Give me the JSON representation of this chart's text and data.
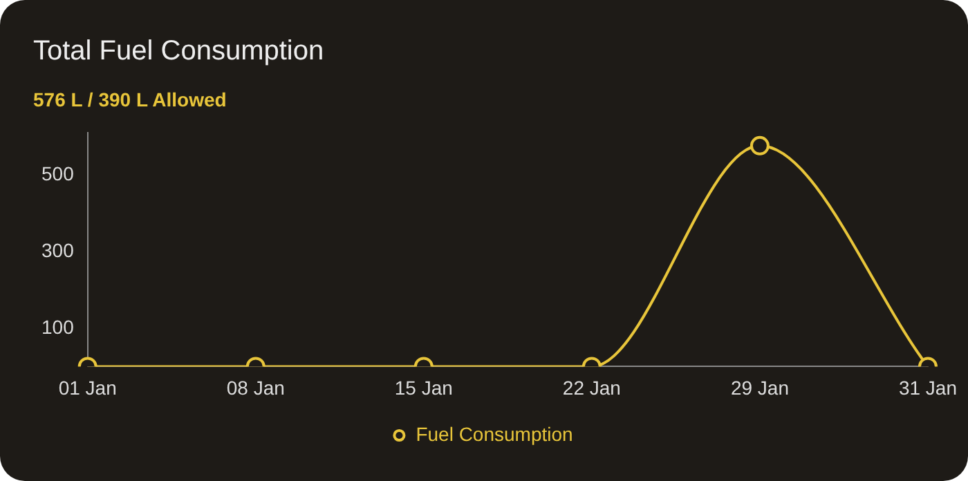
{
  "chart_data": {
    "type": "line",
    "title": "Total Fuel Consumption",
    "subtitle": "576 L / 390 L Allowed",
    "categories": [
      "01 Jan",
      "08 Jan",
      "15 Jan",
      "22 Jan",
      "29 Jan",
      "31 Jan"
    ],
    "series": [
      {
        "name": "Fuel Consumption",
        "color": "#e8c53a",
        "values": [
          0,
          0,
          0,
          0,
          576,
          0
        ]
      }
    ],
    "ylim": [
      0,
      610
    ],
    "yticks": [
      100,
      300,
      500
    ],
    "legend": "bottom",
    "marker": "circle"
  }
}
